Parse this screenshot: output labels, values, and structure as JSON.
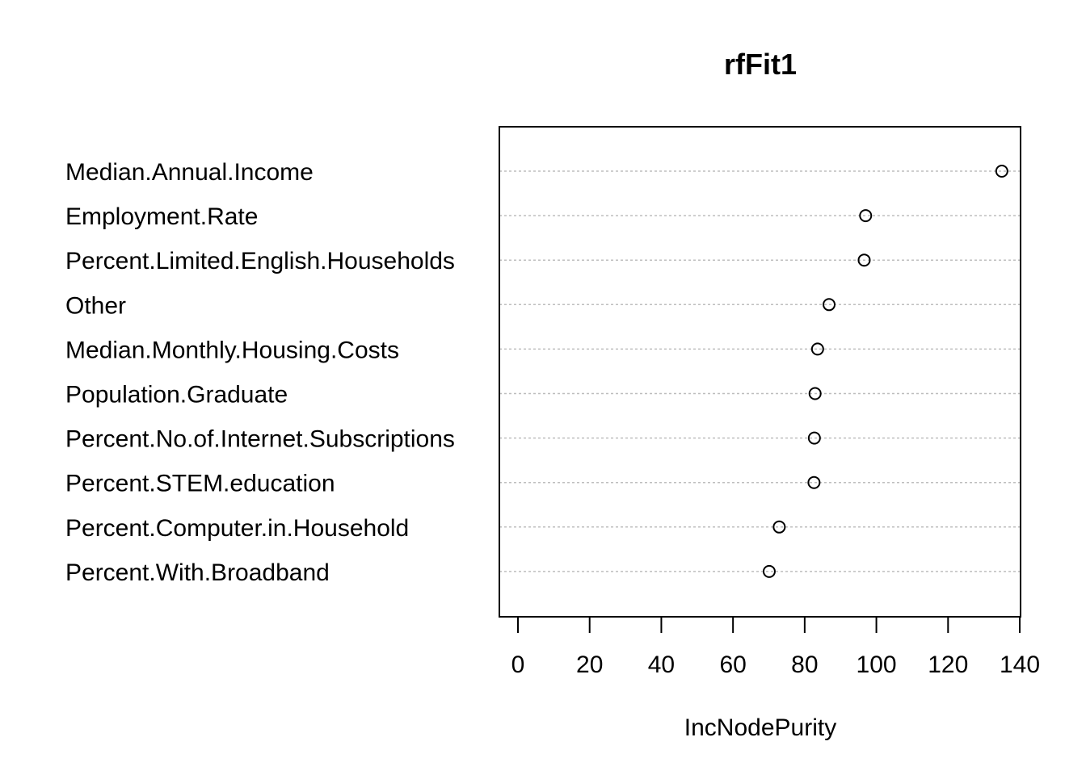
{
  "chart_data": {
    "type": "scatter",
    "subtype": "dotchart",
    "title": "rfFit1",
    "xlabel": "IncNodePurity",
    "ylabel": "",
    "xlim": [
      0,
      140
    ],
    "xticks": [
      0,
      20,
      40,
      60,
      80,
      100,
      120,
      140
    ],
    "grid": "dotted horizontal guide lines",
    "legend": "none",
    "categories": [
      "Median.Annual.Income",
      "Employment.Rate",
      "Percent.Limited.English.Households",
      "Other",
      "Median.Monthly.Housing.Costs",
      "Population.Graduate",
      "Percent.No.of.Internet.Subscriptions",
      "Percent.STEM.education",
      "Percent.Computer.in.Household",
      "Percent.With.Broadband"
    ],
    "values": [
      135.0,
      97.0,
      96.6,
      86.8,
      83.6,
      82.9,
      82.7,
      82.6,
      72.9,
      70.1
    ],
    "colors": {
      "marker_stroke": "#000000",
      "guide_line": "#bebebe",
      "frame": "#000000"
    }
  }
}
